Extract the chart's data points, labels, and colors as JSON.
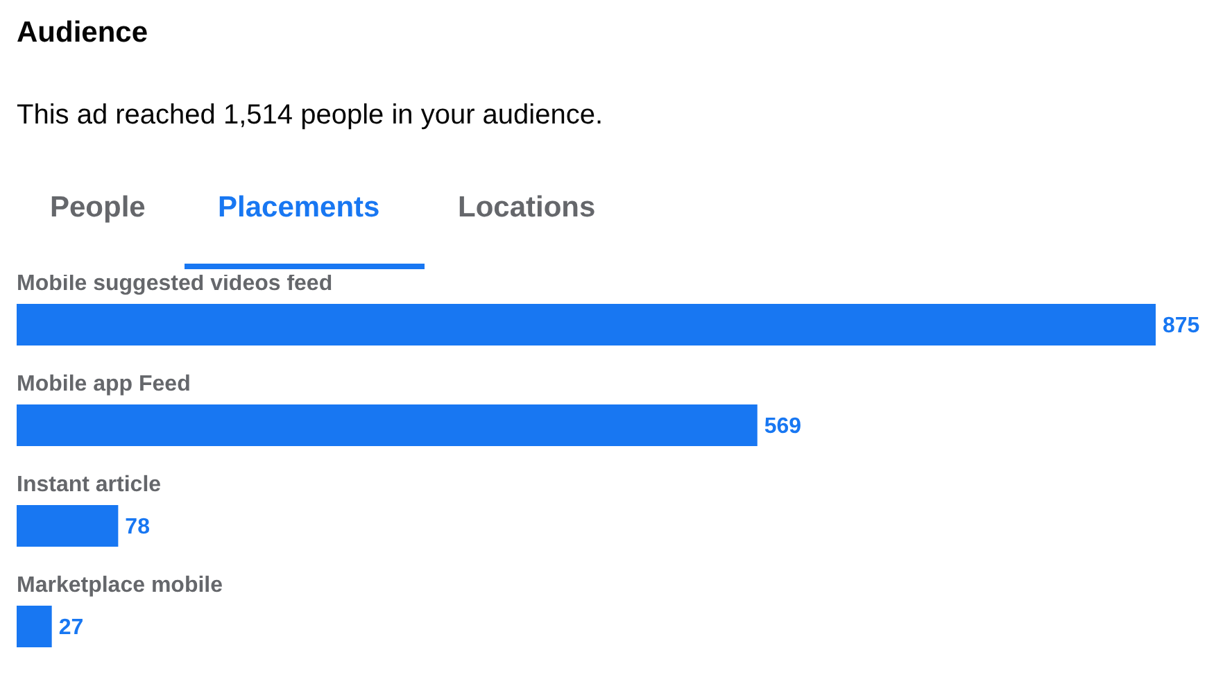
{
  "chart_data": {
    "type": "bar",
    "orientation": "horizontal",
    "title": "Audience",
    "subtitle": "This ad reached 1,514 people in your audience.",
    "annotations": [
      "People",
      "Placements",
      "Locations"
    ],
    "categories": [
      "Mobile suggested videos feed",
      "Mobile app Feed",
      "Instant article",
      "Marketplace mobile"
    ],
    "values": [
      875,
      569,
      78,
      27
    ],
    "color": "#1877f2",
    "data_labels": true,
    "tick_labels": false,
    "grid": false,
    "legend": false
  }
}
